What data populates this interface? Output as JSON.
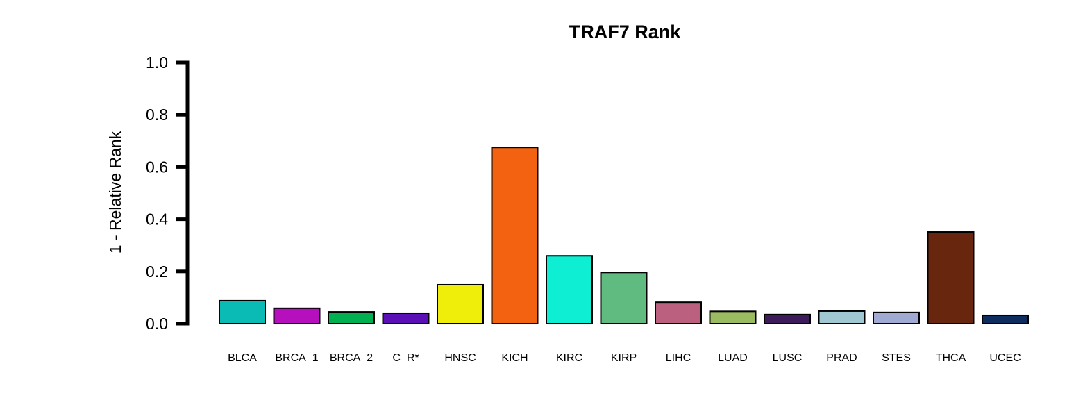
{
  "chart_data": {
    "type": "bar",
    "title": "TRAF7 Rank",
    "xlabel": "",
    "ylabel": "1 - Relative Rank",
    "ylim": [
      0,
      1
    ],
    "yticks": [
      "0.0",
      "0.2",
      "0.4",
      "0.6",
      "0.8",
      "1.0"
    ],
    "grid": false,
    "categories": [
      "BLCA",
      "BRCA_1",
      "BRCA_2",
      "C_R*",
      "HNSC",
      "KICH",
      "KIRC",
      "KIRP",
      "LIHC",
      "LUAD",
      "LUSC",
      "PRAD",
      "STES",
      "THCA",
      "UCEC"
    ],
    "values": [
      0.088,
      0.059,
      0.045,
      0.04,
      0.149,
      0.675,
      0.26,
      0.196,
      0.082,
      0.047,
      0.035,
      0.048,
      0.043,
      0.351,
      0.032
    ],
    "colors": [
      "#0ABAB5",
      "#B50FBE",
      "#00B050",
      "#5B10B5",
      "#EEEE0A",
      "#F26210",
      "#0EEED2",
      "#60BB80",
      "#BC6080",
      "#9ABB60",
      "#3E1C5C",
      "#A0C8D2",
      "#A0AAD2",
      "#68260E",
      "#0F2C5E"
    ]
  }
}
